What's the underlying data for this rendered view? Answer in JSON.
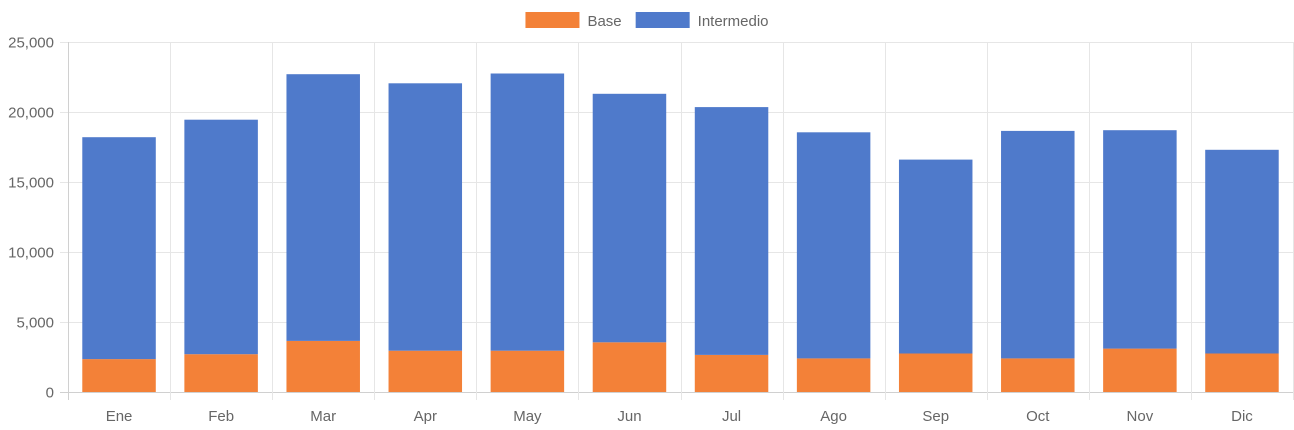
{
  "chart_data": {
    "type": "bar",
    "stacked": true,
    "categories": [
      "Ene",
      "Feb",
      "Mar",
      "Apr",
      "May",
      "Jun",
      "Jul",
      "Ago",
      "Sep",
      "Oct",
      "Nov",
      "Dic"
    ],
    "series": [
      {
        "name": "Base",
        "color": "#f38138",
        "values": [
          2350,
          2700,
          3650,
          2950,
          2950,
          3550,
          2650,
          2400,
          2750,
          2400,
          3100,
          2750
        ]
      },
      {
        "name": "Intermedio",
        "color": "#4f7acb",
        "values": [
          15850,
          16750,
          19050,
          19100,
          19800,
          17750,
          17700,
          16150,
          13850,
          16250,
          15600,
          14550
        ]
      }
    ],
    "ylim": [
      0,
      25000
    ],
    "yticks": [
      "0",
      "5,000",
      "10,000",
      "15,000",
      "20,000",
      "25,000"
    ],
    "ytick_values": [
      0,
      5000,
      10000,
      15000,
      20000,
      25000
    ],
    "legend_position": "top-center",
    "grid": true,
    "title": "",
    "xlabel": "",
    "ylabel": ""
  }
}
